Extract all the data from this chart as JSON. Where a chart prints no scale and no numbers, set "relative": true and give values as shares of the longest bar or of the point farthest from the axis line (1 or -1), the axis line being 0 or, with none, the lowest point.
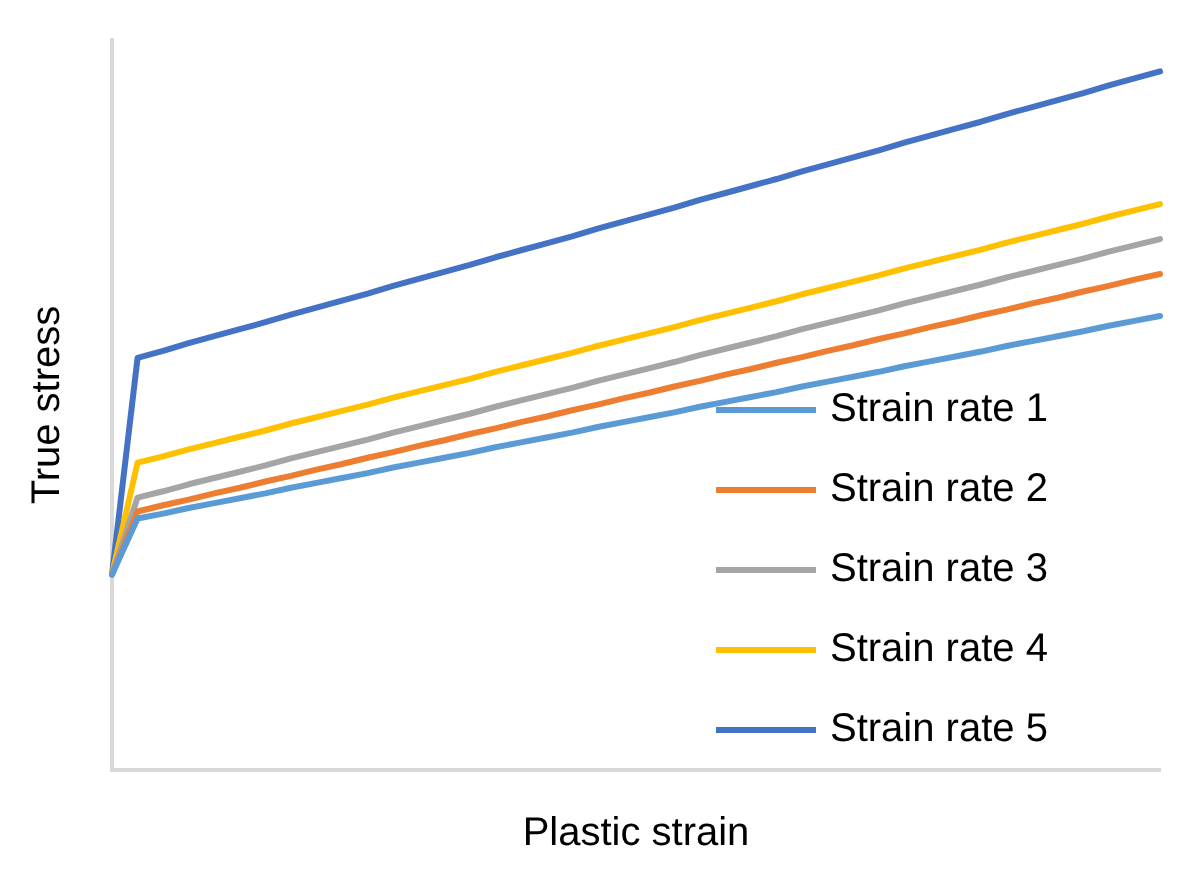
{
  "chart_data": {
    "type": "line",
    "relative": true,
    "xlabel": "Plastic strain",
    "ylabel": "True stress",
    "legend": "bottom right",
    "grid": false,
    "marker": "none",
    "line_style": "solid",
    "categories": [
      null,
      null,
      null,
      null,
      null,
      null,
      null,
      null,
      null,
      null,
      null,
      null,
      null,
      null,
      null,
      null,
      null,
      null,
      null,
      null,
      null,
      null,
      null,
      null,
      null,
      null,
      null,
      null,
      null,
      null,
      null,
      null,
      null,
      null,
      null,
      null,
      null,
      null,
      null,
      null,
      null,
      null
    ],
    "series": [
      {
        "name": "Strain rate 1",
        "color": "#5b9bd5",
        "values": [
          0.28,
          0.36,
          0.367,
          0.375,
          0.382,
          0.389,
          0.396,
          0.404,
          0.411,
          0.418,
          0.425,
          0.433,
          0.44,
          0.447,
          0.454,
          0.462,
          0.469,
          0.476,
          0.483,
          0.491,
          0.498,
          0.505,
          0.512,
          0.52,
          0.527,
          0.534,
          0.541,
          0.549,
          0.556,
          0.563,
          0.57,
          0.578,
          0.585,
          0.592,
          0.599,
          0.607,
          0.614,
          0.621,
          0.628,
          0.636,
          0.643,
          0.65
        ]
      },
      {
        "name": "Strain rate 2",
        "color": "#ed7d31",
        "values": [
          0.28,
          0.37,
          0.379,
          0.387,
          0.396,
          0.404,
          0.413,
          0.421,
          0.43,
          0.438,
          0.447,
          0.455,
          0.464,
          0.472,
          0.481,
          0.489,
          0.498,
          0.506,
          0.515,
          0.523,
          0.532,
          0.54,
          0.549,
          0.557,
          0.566,
          0.574,
          0.583,
          0.591,
          0.6,
          0.608,
          0.617,
          0.625,
          0.634,
          0.642,
          0.651,
          0.659,
          0.668,
          0.676,
          0.685,
          0.693,
          0.702,
          0.71
        ]
      },
      {
        "name": "Strain rate 3",
        "color": "#a5a5a5",
        "values": [
          0.28,
          0.39,
          0.399,
          0.409,
          0.418,
          0.427,
          0.436,
          0.446,
          0.455,
          0.464,
          0.473,
          0.483,
          0.492,
          0.501,
          0.51,
          0.52,
          0.529,
          0.538,
          0.547,
          0.557,
          0.566,
          0.575,
          0.584,
          0.594,
          0.603,
          0.612,
          0.621,
          0.631,
          0.64,
          0.649,
          0.658,
          0.668,
          0.677,
          0.686,
          0.695,
          0.705,
          0.714,
          0.723,
          0.732,
          0.742,
          0.751,
          0.76
        ]
      },
      {
        "name": "Strain rate 4",
        "color": "#ffc000",
        "values": [
          0.28,
          0.44,
          0.449,
          0.459,
          0.468,
          0.477,
          0.486,
          0.496,
          0.505,
          0.514,
          0.523,
          0.533,
          0.542,
          0.551,
          0.56,
          0.57,
          0.579,
          0.588,
          0.597,
          0.607,
          0.616,
          0.625,
          0.634,
          0.644,
          0.653,
          0.662,
          0.671,
          0.681,
          0.69,
          0.699,
          0.708,
          0.718,
          0.727,
          0.736,
          0.745,
          0.755,
          0.764,
          0.773,
          0.782,
          0.792,
          0.801,
          0.81
        ]
      },
      {
        "name": "Strain rate 5",
        "color": "#4472c4",
        "values": [
          0.28,
          0.59,
          0.6,
          0.611,
          0.621,
          0.631,
          0.641,
          0.652,
          0.662,
          0.672,
          0.682,
          0.693,
          0.703,
          0.713,
          0.723,
          0.734,
          0.744,
          0.754,
          0.764,
          0.775,
          0.785,
          0.795,
          0.805,
          0.816,
          0.826,
          0.836,
          0.846,
          0.857,
          0.867,
          0.877,
          0.887,
          0.898,
          0.908,
          0.918,
          0.928,
          0.939,
          0.949,
          0.959,
          0.969,
          0.98,
          0.99,
          1
        ]
      }
    ]
  }
}
